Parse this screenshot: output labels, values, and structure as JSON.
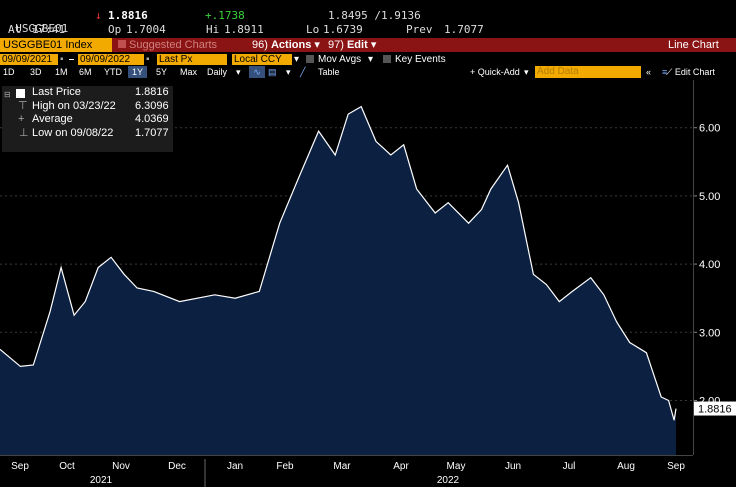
{
  "quote": {
    "ticker": "USGGBE01",
    "arrow": "↓",
    "last": "1.8816",
    "change": "+.1738",
    "bid_ask": "1.8495 /1.9136",
    "at_label": "At",
    "time": "17:41",
    "open_label": "Op",
    "open": "1.7004",
    "hi_label": "Hi",
    "hi": "1.8911",
    "lo_label": "Lo",
    "lo": "1.6739",
    "prev_label": "Prev",
    "prev": "1.7077"
  },
  "titlebar": {
    "security": "USGGBE01 Index",
    "suggested": "Suggested Charts",
    "actions_num": "96)",
    "actions": "Actions",
    "edit_num": "97)",
    "edit": "Edit",
    "chart_type": "Line Chart"
  },
  "controls": {
    "start_date": "09/09/2021",
    "end_date": "09/09/2022",
    "price_field": "Last Px",
    "currency": "Local CCY",
    "mov_avgs": "Mov Avgs",
    "key_events": "Key Events"
  },
  "toolbar": {
    "periods": [
      "1D",
      "3D",
      "1M",
      "6M",
      "YTD",
      "1Y",
      "5Y",
      "Max"
    ],
    "selected_period": "1Y",
    "frequency": "Daily",
    "table": "Table",
    "quick_add": "+ Quick-Add",
    "add_data_placeholder": "Add Data",
    "edit_chart": "Edit Chart"
  },
  "legend": {
    "last_label": "Last Price",
    "last_value": "1.8816",
    "high_label": "High on 03/23/22",
    "high_value": "6.3096",
    "avg_label": "Average",
    "avg_value": "4.0369",
    "low_label": "Low on 09/08/22",
    "low_value": "1.7077"
  },
  "colors": {
    "accent_amber": "#f2a900",
    "title_red": "#8a1414",
    "area_fill": "#0c2142",
    "line": "#ffffff"
  },
  "chart_data": {
    "type": "area",
    "series": [
      {
        "name": "Last Price",
        "x": [
          "2021-09-09",
          "2021-09-20",
          "2021-09-27",
          "2021-10-06",
          "2021-10-12",
          "2021-10-19",
          "2021-10-25",
          "2021-11-01",
          "2021-11-08",
          "2021-11-15",
          "2021-11-22",
          "2021-12-01",
          "2021-12-15",
          "2022-01-03",
          "2022-01-14",
          "2022-01-27",
          "2022-02-07",
          "2022-02-17",
          "2022-02-28",
          "2022-03-09",
          "2022-03-16",
          "2022-03-23",
          "2022-03-31",
          "2022-04-08",
          "2022-04-15",
          "2022-04-22",
          "2022-05-02",
          "2022-05-09",
          "2022-05-20",
          "2022-05-27",
          "2022-06-01",
          "2022-06-10",
          "2022-06-16",
          "2022-06-24",
          "2022-07-01",
          "2022-07-08",
          "2022-07-15",
          "2022-07-25",
          "2022-08-01",
          "2022-08-08",
          "2022-08-15",
          "2022-08-24",
          "2022-09-01",
          "2022-09-05",
          "2022-09-08",
          "2022-09-09"
        ],
        "y": [
          2.75,
          2.5,
          2.52,
          3.3,
          3.95,
          3.25,
          3.45,
          3.95,
          4.1,
          3.85,
          3.65,
          3.6,
          3.45,
          3.55,
          3.5,
          3.6,
          4.6,
          5.25,
          5.95,
          5.6,
          6.2,
          6.31,
          5.8,
          5.6,
          5.75,
          5.1,
          4.75,
          4.9,
          4.6,
          4.8,
          5.1,
          5.45,
          4.9,
          3.85,
          3.7,
          3.45,
          3.6,
          3.8,
          3.55,
          3.15,
          2.85,
          2.7,
          2.05,
          2.0,
          1.71,
          1.88
        ]
      }
    ],
    "ylim": [
      1.2,
      6.7
    ],
    "y_ticks": [
      "2.00",
      "3.00",
      "4.00",
      "5.00",
      "6.00"
    ],
    "x_months": [
      "Sep",
      "Oct",
      "Nov",
      "Dec",
      "Jan",
      "Feb",
      "Mar",
      "Apr",
      "May",
      "Jun",
      "Jul",
      "Aug",
      "Sep"
    ],
    "x_years": [
      "2021",
      "2022"
    ],
    "last_value_tag": "1.8816",
    "grid": true
  }
}
